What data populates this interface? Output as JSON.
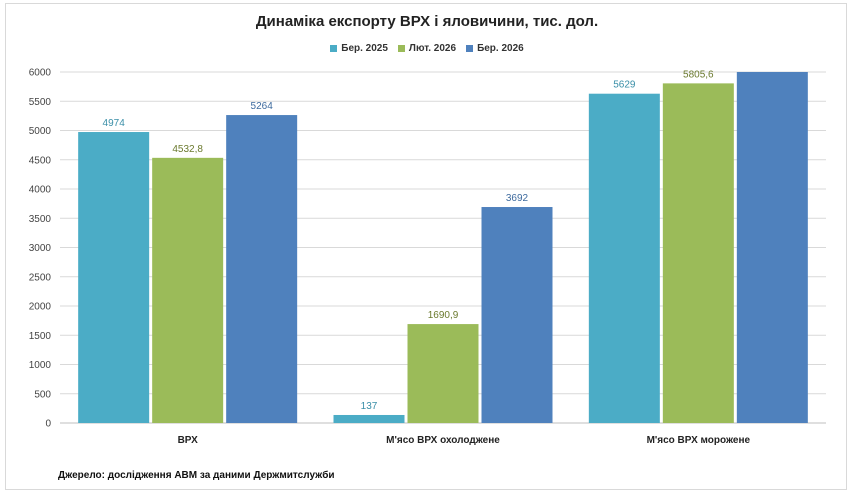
{
  "chart_data": {
    "type": "bar",
    "title": "Динаміка експорту ВРХ і яловичини, тис. дол.",
    "categories": [
      "ВРХ",
      "М'ясо ВРХ охолоджене",
      "М'ясо ВРХ морожене"
    ],
    "series": [
      {
        "name": "Бер. 2025",
        "color": "#4bacc6",
        "values": [
          4974,
          137,
          5629
        ],
        "labels": [
          "4974",
          "137",
          "5629"
        ]
      },
      {
        "name": "Лют. 2026",
        "color": "#9bbb59",
        "values": [
          4532.8,
          1690.9,
          5805.6
        ],
        "labels": [
          "4532,8",
          "1690,9",
          "5805,6"
        ]
      },
      {
        "name": "Бер. 2026",
        "color": "#4f81bd",
        "values": [
          5264,
          3692,
          6000
        ],
        "labels": [
          "5264",
          "3692",
          ""
        ]
      }
    ],
    "ylim": [
      0,
      6000
    ],
    "yticks": [
      0,
      500,
      1000,
      1500,
      2000,
      2500,
      3000,
      3500,
      4000,
      4500,
      5000,
      5500,
      6000
    ],
    "grid": true,
    "legend": "top"
  },
  "source": "Джерело: дослідження АВМ за даними Держмитслужби"
}
